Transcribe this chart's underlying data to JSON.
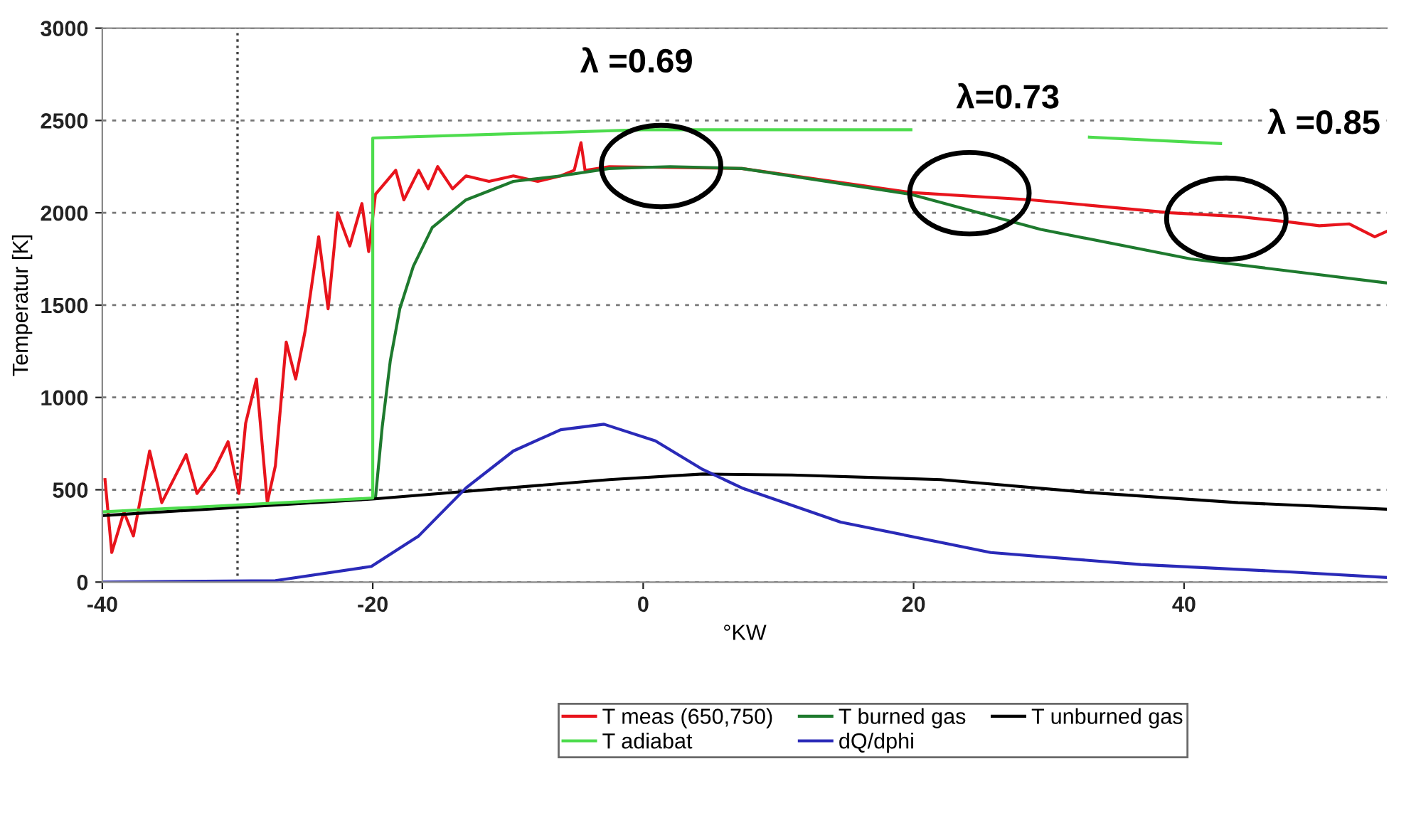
{
  "chart_data": {
    "type": "line",
    "xlabel": "°KW",
    "ylabel": "Temperatur [K]",
    "xlim": [
      -40,
      55
    ],
    "ylim": [
      0,
      3000
    ],
    "xticks": [
      -40,
      -20,
      0,
      20,
      40
    ],
    "yticks": [
      0,
      500,
      1000,
      1500,
      2000,
      2500,
      3000
    ],
    "grid": "y",
    "legend": "bottom",
    "line_style": "solid",
    "marker": "none",
    "ref_lines": [
      {
        "axis": "x",
        "value": -30,
        "color": "#404040",
        "line_style": "dotted"
      }
    ],
    "annotations": [
      "λ =0.69",
      "λ=0.73",
      "λ =0.85"
    ],
    "series": [
      {
        "name": "T meas (650,750)",
        "color": "#e8141c",
        "x": [
          -39.8,
          -39.3,
          -38.4,
          -37.7,
          -36.5,
          -35.6,
          -33.8,
          -33.0,
          -31.7,
          -30.7,
          -29.9,
          -29.4,
          -28.6,
          -27.8,
          -27.2,
          -26.4,
          -25.7,
          -25.0,
          -24.0,
          -23.3,
          -22.6,
          -21.7,
          -20.8,
          -20.3,
          -19.8,
          -18.3,
          -17.7,
          -16.6,
          -15.9,
          -15.2,
          -14.1,
          -13.1,
          -11.4,
          -9.6,
          -7.8,
          -6.1,
          -5.1,
          -4.6,
          -4.3,
          -2.5,
          7.3,
          19.8,
          28.7,
          39.0,
          44.0,
          47.8,
          50.0,
          52.2,
          54.1,
          55.0
        ],
        "values": [
          555,
          160,
          380,
          250,
          710,
          430,
          690,
          480,
          610,
          760,
          480,
          860,
          1100,
          430,
          630,
          1300,
          1100,
          1360,
          1870,
          1480,
          2000,
          1820,
          2050,
          1790,
          2100,
          2230,
          2070,
          2230,
          2130,
          2250,
          2130,
          2200,
          2170,
          2200,
          2170,
          2200,
          2230,
          2380,
          2230,
          2250,
          2240,
          2110,
          2070,
          2000,
          1980,
          1950,
          1930,
          1940,
          1870,
          1900
        ]
      },
      {
        "name": "T burned gas",
        "color": "#1e7a2e",
        "x": [
          -19.8,
          -19.3,
          -18.7,
          -18.0,
          -17.0,
          -15.6,
          -13.1,
          -9.6,
          -6.1,
          -2.5,
          2.0,
          7.3,
          19.8,
          29.4,
          40.5,
          55.0
        ],
        "values": [
          455,
          840,
          1200,
          1480,
          1710,
          1920,
          2070,
          2170,
          2200,
          2240,
          2250,
          2240,
          2100,
          1910,
          1750,
          1620
        ]
      },
      {
        "name": "T unburned gas",
        "color": "#000000",
        "x": [
          -40,
          -20,
          -2.5,
          4.4,
          11,
          22,
          33,
          44,
          55
        ],
        "values": [
          360,
          450,
          555,
          585,
          580,
          555,
          485,
          430,
          395
        ]
      },
      {
        "name": "T adiabat",
        "color": "#4ddc4d",
        "x": [
          -40,
          -20,
          -20,
          0,
          19.8,
          26,
          33,
          42.7
        ],
        "values": [
          380,
          455,
          2405,
          2450,
          2450,
          null,
          2410,
          2375
        ]
      },
      {
        "name": "dQ/dphi",
        "color": "#2a2ab8",
        "x": [
          -40,
          -27.2,
          -20.1,
          -16.6,
          -13.1,
          -9.6,
          -6.1,
          -2.9,
          0.9,
          4.4,
          7.3,
          14.6,
          25.7,
          36.8,
          47.8,
          55.0
        ],
        "values": [
          0,
          8,
          85,
          250,
          510,
          710,
          825,
          855,
          765,
          610,
          510,
          325,
          160,
          95,
          55,
          25
        ]
      }
    ]
  }
}
